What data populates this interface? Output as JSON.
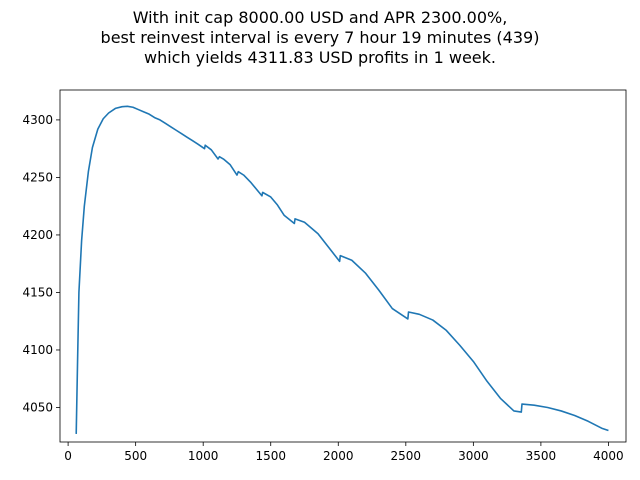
{
  "chart_data": {
    "type": "line",
    "title_lines": [
      "With init cap 8000.00 USD and APR 2300.00%,",
      "best reinvest interval is every 7 hour 19 minutes (439)",
      "which yields 4311.83 USD profits in 1 week."
    ],
    "xlabel": "",
    "ylabel": "",
    "xlim": [
      -60,
      4130
    ],
    "ylim": [
      4020,
      4326
    ],
    "x_ticks": [
      0,
      500,
      1000,
      1500,
      2000,
      2500,
      3000,
      3500,
      4000
    ],
    "y_ticks": [
      4050,
      4100,
      4150,
      4200,
      4250,
      4300
    ],
    "grid": false,
    "line_color": "#1f77b4",
    "series": [
      {
        "x": [
          60,
          70,
          80,
          100,
          120,
          150,
          180,
          220,
          260,
          300,
          350,
          400,
          439,
          480,
          520,
          560,
          600,
          640,
          680,
          720,
          760,
          800,
          840,
          880,
          920,
          960,
          1010,
          1015,
          1060,
          1110,
          1120,
          1150,
          1200,
          1250,
          1260,
          1300,
          1350,
          1435,
          1440,
          1500,
          1550,
          1600,
          1675,
          1680,
          1750,
          1850,
          1950,
          2010,
          2015,
          2100,
          2200,
          2300,
          2400,
          2515,
          2520,
          2600,
          2700,
          2800,
          2900,
          3000,
          3100,
          3200,
          3300,
          3355,
          3360,
          3450,
          3550,
          3650,
          3750,
          3850,
          3950,
          4000
        ],
        "y": [
          4027,
          4090,
          4150,
          4195,
          4225,
          4255,
          4276,
          4292,
          4301,
          4306,
          4310,
          4311.5,
          4311.8,
          4311,
          4309,
          4307,
          4305,
          4302,
          4300,
          4297,
          4294,
          4291,
          4288,
          4285,
          4282,
          4279,
          4275,
          4278,
          4274,
          4266,
          4268,
          4266,
          4261,
          4252,
          4255,
          4252,
          4246,
          4234,
          4237,
          4233,
          4226,
          4217,
          4210,
          4214,
          4211,
          4201,
          4186,
          4177,
          4182,
          4178,
          4167,
          4152,
          4136,
          4127,
          4133,
          4131,
          4126,
          4117,
          4104,
          4090,
          4073,
          4058,
          4047,
          4046,
          4053,
          4052,
          4050,
          4047,
          4043,
          4038,
          4032,
          4030
        ]
      }
    ]
  }
}
